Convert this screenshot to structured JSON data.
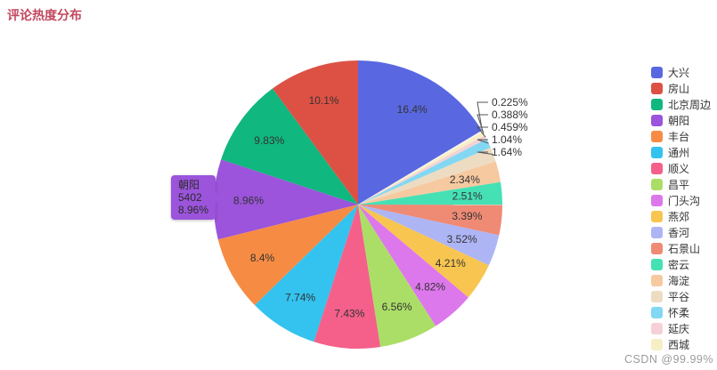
{
  "header": {
    "title": "评论热度分布",
    "title_color": "#c2485f"
  },
  "tooltip": {
    "name": "朝阳",
    "value": "5402",
    "percent": "8.96%",
    "background": "#9b54db"
  },
  "watermark": {
    "text": "CSDN @99.99%"
  },
  "chart_data": {
    "type": "pie",
    "title": "评论热度分布",
    "legend_position": "right",
    "start_angle": 90,
    "series": [
      {
        "name": "大兴",
        "value": 16.4,
        "label": "16.4%",
        "color": "#5968e0",
        "label_color": "#ffffff"
      },
      {
        "name": "房山",
        "value": 10.1,
        "label": "10.1%",
        "color": "#dd5145"
      },
      {
        "name": "北京周边",
        "value": 9.83,
        "label": "9.83%",
        "color": "#10b77f"
      },
      {
        "name": "朝阳",
        "value": 8.96,
        "label": "8.96%",
        "color": "#9b54db"
      },
      {
        "name": "丰台",
        "value": 8.4,
        "label": "8.4%",
        "color": "#f68c44"
      },
      {
        "name": "通州",
        "value": 7.74,
        "label": "7.74%",
        "color": "#33c3ee"
      },
      {
        "name": "顺义",
        "value": 7.43,
        "label": "7.43%",
        "color": "#f4608a"
      },
      {
        "name": "昌平",
        "value": 6.56,
        "label": "6.56%",
        "color": "#abde67"
      },
      {
        "name": "门头沟",
        "value": 4.82,
        "label": "4.82%",
        "color": "#dd78ec"
      },
      {
        "name": "燕郊",
        "value": 4.21,
        "label": "4.21%",
        "color": "#f8c550"
      },
      {
        "name": "香河",
        "value": 3.52,
        "label": "3.52%",
        "color": "#aeb5f5"
      },
      {
        "name": "石景山",
        "value": 3.39,
        "label": "3.39%",
        "color": "#ef8a75"
      },
      {
        "name": "密云",
        "value": 2.51,
        "label": "2.51%",
        "color": "#45e1b5"
      },
      {
        "name": "海淀",
        "value": 2.34,
        "label": "2.34%",
        "color": "#f6c9a0"
      },
      {
        "name": "平谷",
        "value": 1.64,
        "label": "1.64%",
        "color": "#eddcc2"
      },
      {
        "name": "怀柔",
        "value": 1.04,
        "label": "1.04%",
        "color": "#82d8f2"
      },
      {
        "name": "延庆",
        "value": 0.459,
        "label": "0.459%",
        "color": "#f6d0d6"
      },
      {
        "name": "西城",
        "value": 0.388,
        "label": "0.388%",
        "color": "#f6efc5"
      },
      {
        "name": "",
        "value": 0.225,
        "label": "0.225%",
        "color": "#f8f4e4"
      }
    ]
  }
}
